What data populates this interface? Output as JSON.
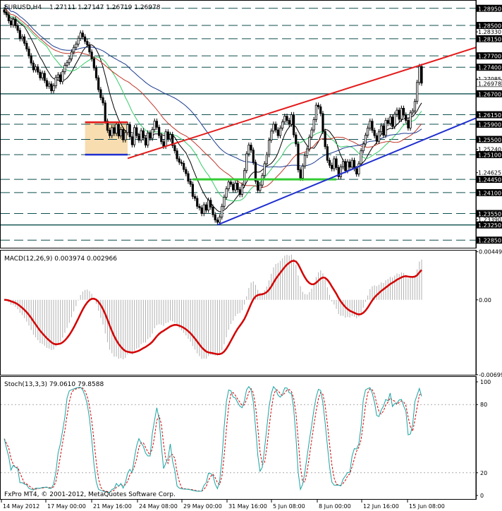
{
  "header": {
    "symbol": "EURUSD,H4",
    "ohlc": "1.27111 1.27147 1.26719 1.26978"
  },
  "copyright": "FxPro MT4, © 2001-2012, MetaQuotes Software Corp.",
  "colors": {
    "bull": "#000000",
    "bear": "#000000",
    "ma_black": "#000000",
    "ma_green": "#33cc66",
    "ma_darkred": "#c0392b",
    "ma_navy": "#1a3a8f",
    "channel_red": "#e31b1b",
    "channel_blue": "#1f2fcf",
    "box_fill": "#f8ddb0",
    "box_top": "#e31b1b",
    "box_bottom": "#1f2fcf",
    "support_green": "#33cc33",
    "macd_signal": "#d40000",
    "macd_hist": "#b0b0b0",
    "stoch_main": "#1aa3a3",
    "stoch_signal": "#d40000",
    "level_line": "#0d4d4d",
    "price_tag_bg": "#000000"
  },
  "chart_data": [
    {
      "type": "candlestick",
      "panel": "main",
      "title": "EURUSD,H4",
      "ylim": [
        1.2265,
        1.2915
      ],
      "price_levels": [
        {
          "value": 1.2895,
          "label": "1.28950",
          "tag": true
        },
        {
          "value": 1.285,
          "label": "1.28500",
          "tag": true
        },
        {
          "value": 1.2833,
          "label": "1.28330",
          "tag": false
        },
        {
          "value": 1.2815,
          "label": "1.28150",
          "tag": true
        },
        {
          "value": 1.277,
          "label": "1.27700",
          "tag": true
        },
        {
          "value": 1.274,
          "label": "1.27400",
          "tag": true
        },
        {
          "value": 1.2709,
          "label": "1.27085",
          "tag": false
        },
        {
          "value": 1.267,
          "label": "1.26700",
          "tag": true
        },
        {
          "value": 1.2615,
          "label": "1.26150",
          "tag": true
        },
        {
          "value": 1.259,
          "label": "1.25900",
          "tag": true
        },
        {
          "value": 1.255,
          "label": "1.25500",
          "tag": true
        },
        {
          "value": 1.2524,
          "label": "1.25240",
          "tag": false
        },
        {
          "value": 1.251,
          "label": "1.25100",
          "tag": true
        },
        {
          "value": 1.24625,
          "label": "1.24625",
          "tag": false
        },
        {
          "value": 1.2445,
          "label": "1.24450",
          "tag": true
        },
        {
          "value": 1.241,
          "label": "1.24100",
          "tag": true
        },
        {
          "value": 1.2355,
          "label": "1.23550",
          "tag": true
        },
        {
          "value": 1.2339,
          "label": "1.23390",
          "tag": false
        },
        {
          "value": 1.2325,
          "label": "1.23250",
          "tag": true
        },
        {
          "value": 1.2285,
          "label": "1.22850",
          "tag": true
        }
      ],
      "current_price": {
        "value": 1.2698,
        "label": "1.26978"
      },
      "x_labels": [
        "14 May 2012",
        "17 May 00:00",
        "21 May 16:00",
        "24 May 08:00",
        "29 May 00:00",
        "31 May 16:00",
        "5 Jun 08:00",
        "8 Jun 00:00",
        "12 Jun 16:00",
        "15 Jun 08:00"
      ],
      "closes": [
        1.2885,
        1.2878,
        1.2862,
        1.2851,
        1.2866,
        1.2849,
        1.2837,
        1.2815,
        1.282,
        1.2803,
        1.2788,
        1.277,
        1.2751,
        1.2733,
        1.2741,
        1.2727,
        1.2712,
        1.2724,
        1.2705,
        1.269,
        1.2696,
        1.2678,
        1.2691,
        1.2713,
        1.272,
        1.2702,
        1.2728,
        1.2745,
        1.2752,
        1.2762,
        1.278,
        1.2792,
        1.2801,
        1.2816,
        1.283,
        1.282,
        1.2808,
        1.2799,
        1.278,
        1.2762,
        1.2738,
        1.2712,
        1.2681,
        1.266,
        1.2646,
        1.2598,
        1.2574,
        1.256,
        1.2581,
        1.2566,
        1.259,
        1.2559,
        1.2576,
        1.2549,
        1.2568,
        1.2589,
        1.2557,
        1.2536,
        1.2581,
        1.256,
        1.2548,
        1.2573,
        1.2554,
        1.2535,
        1.2567,
        1.2553,
        1.2576,
        1.2598,
        1.2582,
        1.256,
        1.2544,
        1.2532,
        1.257,
        1.2551,
        1.2563,
        1.2534,
        1.252,
        1.2499,
        1.249,
        1.2487,
        1.2471,
        1.246,
        1.244,
        1.2432,
        1.24,
        1.2395,
        1.2374,
        1.237,
        1.2355,
        1.2378,
        1.2364,
        1.239,
        1.2372,
        1.2352,
        1.2338,
        1.2332,
        1.2346,
        1.2374,
        1.2398,
        1.242,
        1.2438,
        1.2432,
        1.2417,
        1.2435,
        1.2418,
        1.2405,
        1.243,
        1.2468,
        1.2512,
        1.2535,
        1.2522,
        1.249,
        1.244,
        1.2416,
        1.243,
        1.2455,
        1.2486,
        1.251,
        1.2548,
        1.2572,
        1.259,
        1.2575,
        1.256,
        1.258,
        1.2596,
        1.2611,
        1.26,
        1.259,
        1.2615,
        1.2562,
        1.2538,
        1.247,
        1.2448,
        1.248,
        1.2508,
        1.2525,
        1.2556,
        1.2575,
        1.2602,
        1.264,
        1.2636,
        1.2618,
        1.2571,
        1.2531,
        1.2495,
        1.2482,
        1.2473,
        1.2499,
        1.2476,
        1.2452,
        1.2478,
        1.2492,
        1.2468,
        1.2491,
        1.2477,
        1.2495,
        1.2473,
        1.2459,
        1.2486,
        1.252,
        1.2538,
        1.2561,
        1.258,
        1.2598,
        1.2574,
        1.256,
        1.2545,
        1.257,
        1.2586,
        1.2561,
        1.26,
        1.2592,
        1.2609,
        1.2584,
        1.2616,
        1.2627,
        1.2603,
        1.2632,
        1.2614,
        1.26,
        1.258,
        1.262,
        1.2625,
        1.265,
        1.27,
        1.2742,
        1.2698
      ],
      "moving_averages": [
        "black",
        "green",
        "darkred",
        "navy"
      ],
      "trend_lines": [
        "red upper channel",
        "blue lower channel"
      ],
      "range_box": {
        "top": 1.2595,
        "bottom": 1.251
      },
      "support_line": 1.2445
    },
    {
      "type": "histogram+line",
      "panel": "macd",
      "title": "MACD(12,26,9) 0.003974 0.002966",
      "ylim": [
        -0.007,
        0.0046
      ],
      "tick_labels": [
        {
          "value": 0.00449,
          "label": "0.00449"
        },
        {
          "value": 0.0,
          "label": "0.00"
        },
        {
          "value": -0.00699,
          "label": "-0.00699"
        }
      ]
    },
    {
      "type": "line",
      "panel": "stoch",
      "title": "Stoch(13,3,3) 79.0610 79.8588",
      "ylim": [
        0,
        100
      ],
      "tick_labels": [
        {
          "value": 100,
          "label": "100"
        },
        {
          "value": 80,
          "label": "80"
        },
        {
          "value": 20,
          "label": "20"
        },
        {
          "value": 0,
          "label": "0"
        }
      ]
    }
  ]
}
